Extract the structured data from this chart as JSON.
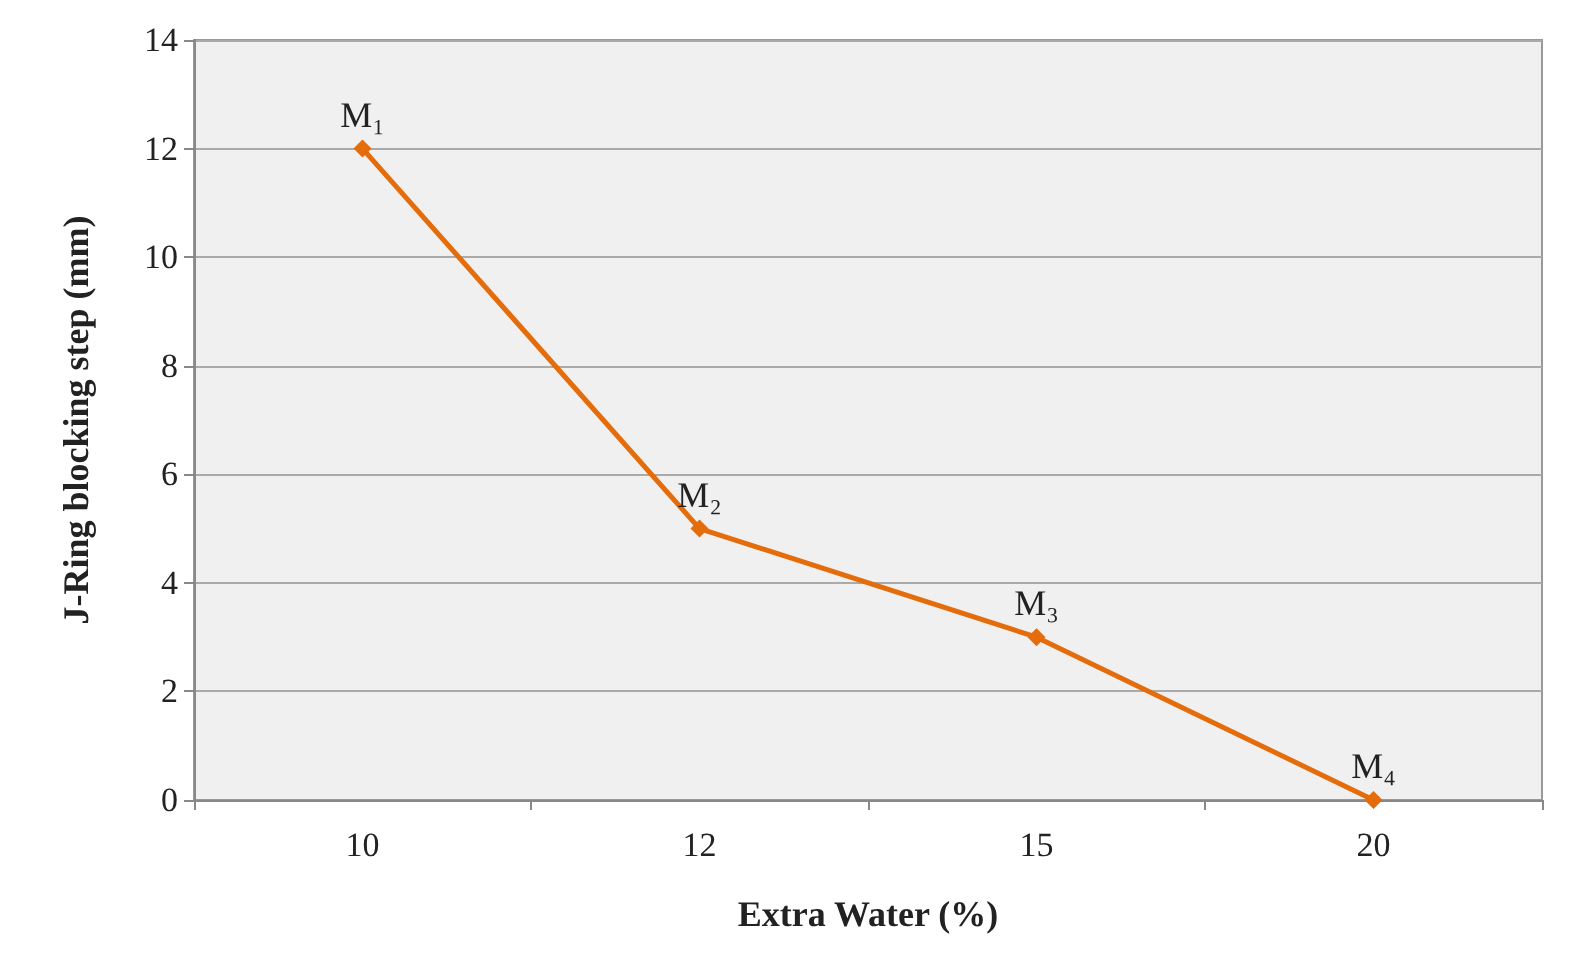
{
  "chart_data": {
    "type": "line",
    "xlabel": "Extra Water (%)",
    "ylabel": "J-Ring blocking step (mm)",
    "categories": [
      "10",
      "12",
      "15",
      "20"
    ],
    "series": [
      {
        "color": "#e46c0a",
        "values": [
          12,
          5,
          3,
          0
        ]
      }
    ],
    "ylim": [
      0,
      14
    ],
    "yticks": [
      0,
      2,
      4,
      6,
      8,
      10,
      12,
      14
    ],
    "grid": "y",
    "marker": "diamond",
    "line_style": "solid",
    "annotations": [
      {
        "text": "M₁",
        "x": "10",
        "y": 12
      },
      {
        "text": "M₂",
        "x": "12",
        "y": 5
      },
      {
        "text": "M₃",
        "x": "15",
        "y": 3
      },
      {
        "text": "M₄",
        "x": "20",
        "y": 0
      }
    ]
  }
}
